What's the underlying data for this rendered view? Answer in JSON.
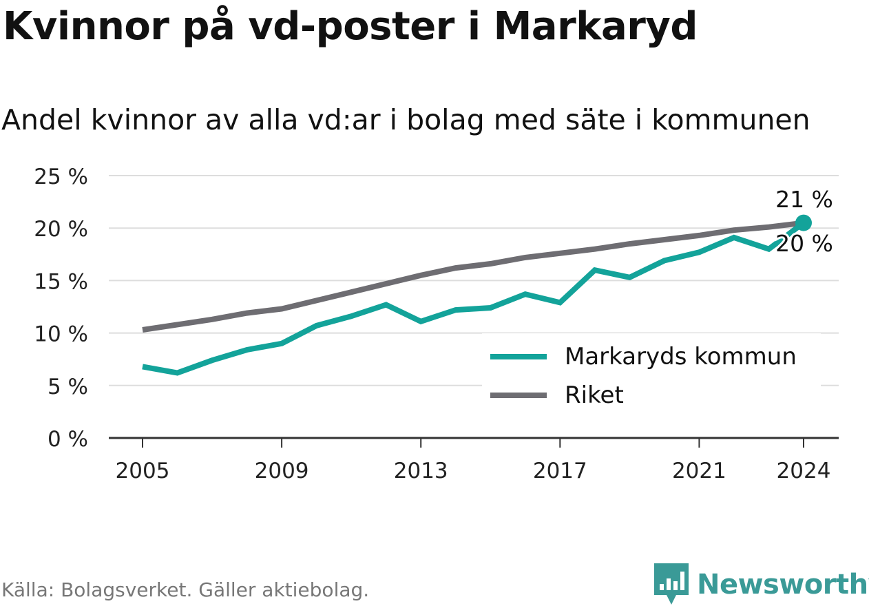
{
  "title": "Kvinnor på vd-poster i Markaryd",
  "subtitle": "Andel kvinnor av alla vd:ar i bolag med säte i kommunen",
  "source": "Källa: Bolagsverket. Gäller aktiebolag.",
  "brand": "Newsworthy",
  "colors": {
    "markaryd": "#13a39a",
    "riket": "#6e6d72",
    "grid": "#dddddd",
    "axis": "#333333",
    "brand": "#3a9a97"
  },
  "chart_data": {
    "type": "line",
    "x": [
      2005,
      2006,
      2007,
      2008,
      2009,
      2010,
      2011,
      2012,
      2013,
      2014,
      2015,
      2016,
      2017,
      2018,
      2019,
      2020,
      2021,
      2022,
      2023,
      2024
    ],
    "series": [
      {
        "name": "Markaryds kommun",
        "values": [
          6.8,
          6.2,
          7.4,
          8.4,
          9.0,
          10.7,
          11.6,
          12.7,
          11.1,
          12.2,
          12.4,
          13.7,
          12.9,
          16.0,
          15.3,
          16.9,
          17.7,
          19.1,
          18.0,
          20.5
        ]
      },
      {
        "name": "Riket",
        "values": [
          10.3,
          10.8,
          11.3,
          11.9,
          12.3,
          13.1,
          13.9,
          14.7,
          15.5,
          16.2,
          16.6,
          17.2,
          17.6,
          18.0,
          18.5,
          18.9,
          19.3,
          19.8,
          20.1,
          20.5
        ]
      }
    ],
    "xticks": [
      "2005",
      "2009",
      "2013",
      "2017",
      "2021",
      "2024"
    ],
    "yticks": [
      "0 %",
      "5 %",
      "10 %",
      "15 %",
      "20 %",
      "25 %"
    ],
    "ylim": [
      0,
      25
    ],
    "end_labels": {
      "markaryd": "21 %",
      "riket": "20 %"
    },
    "legend": [
      "Markaryds kommun",
      "Riket"
    ],
    "legend_position": "lower-right",
    "grid": "horizontal"
  }
}
